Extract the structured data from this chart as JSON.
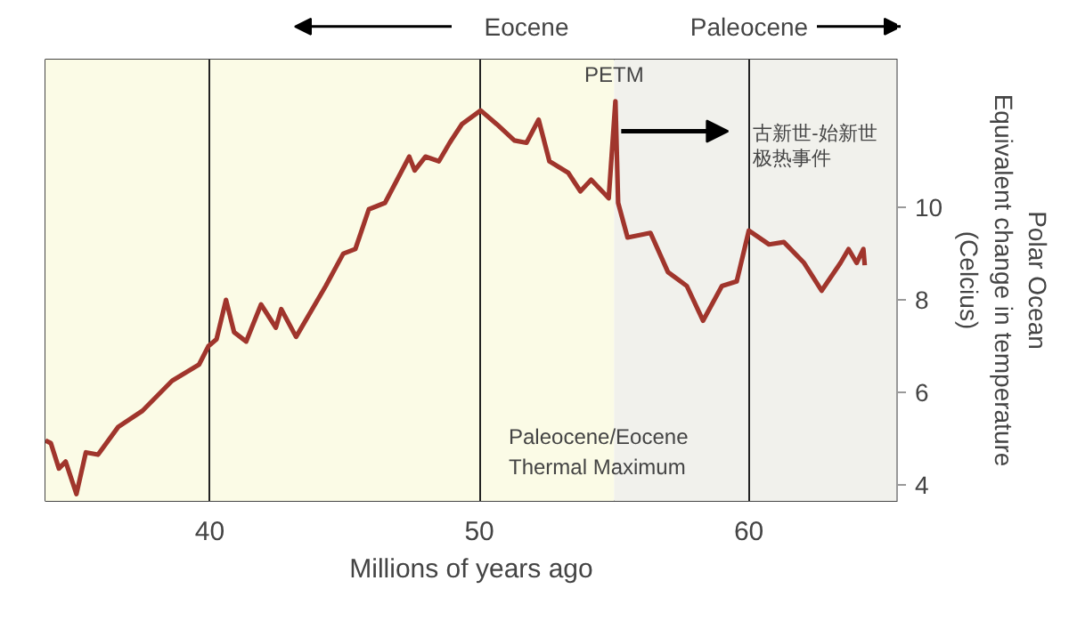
{
  "chart_data": {
    "type": "line",
    "xlabel": "Millions of years ago",
    "ylabel": "Polar Ocean\nEquivalent change in temperature\n(Celcius)",
    "x": [
      33.9,
      34.1,
      34.4,
      34.65,
      35.05,
      35.4,
      35.85,
      36.6,
      37.5,
      38.6,
      39.6,
      39.95,
      40.25,
      40.6,
      40.9,
      41.35,
      41.9,
      42.45,
      42.65,
      43.2,
      44.3,
      44.95,
      45.4,
      45.9,
      46.5,
      47.4,
      47.6,
      48.0,
      48.5,
      48.9,
      49.35,
      50.05,
      50.65,
      51.3,
      51.75,
      52.2,
      52.6,
      53.3,
      53.75,
      54.15,
      54.8,
      55.05,
      55.15,
      55.5,
      56.35,
      57.0,
      57.7,
      58.3,
      59.0,
      59.55,
      60.0,
      60.75,
      61.3,
      62.05,
      62.7,
      63.4,
      63.7,
      64.0,
      64.25,
      64.3
    ],
    "series": [
      {
        "color": "#a0352c",
        "values": [
          4.96,
          4.9,
          4.35,
          4.5,
          3.8,
          4.7,
          4.65,
          5.25,
          5.6,
          6.25,
          6.6,
          7.0,
          7.15,
          8.0,
          7.3,
          7.1,
          7.9,
          7.4,
          7.8,
          7.2,
          8.3,
          9.0,
          9.1,
          9.96,
          10.1,
          11.1,
          10.8,
          11.1,
          11.0,
          11.4,
          11.8,
          12.1,
          11.8,
          11.45,
          11.4,
          11.9,
          11.0,
          10.75,
          10.35,
          10.6,
          10.2,
          12.3,
          10.1,
          9.35,
          9.45,
          8.6,
          8.3,
          7.55,
          8.3,
          8.4,
          9.5,
          9.2,
          9.25,
          8.8,
          8.2,
          8.8,
          9.1,
          8.8,
          9.1,
          8.75
        ]
      }
    ],
    "xlim": [
      33.9,
      65.5
    ],
    "ylim": [
      3.65,
      13.2
    ],
    "xticks": [
      40,
      50,
      60
    ],
    "yticks": [
      4,
      6,
      8,
      10
    ],
    "grid": "x",
    "line_style": "solid",
    "bands": [
      {
        "axis": "x",
        "from": 33.9,
        "to": 55,
        "color": "#fbfbe6"
      },
      {
        "axis": "x",
        "from": 55,
        "to": 65.5,
        "color": "#f1f1ec"
      }
    ],
    "annotations": [
      "Eocene",
      "Paleocene",
      {
        "text": "PETM",
        "x": 55,
        "y": 12.3
      },
      {
        "text": "古新世-始新世极热事件",
        "x": 55,
        "y": 11.65
      },
      "Paleocene/Eocene\nThermal Maximum"
    ]
  }
}
